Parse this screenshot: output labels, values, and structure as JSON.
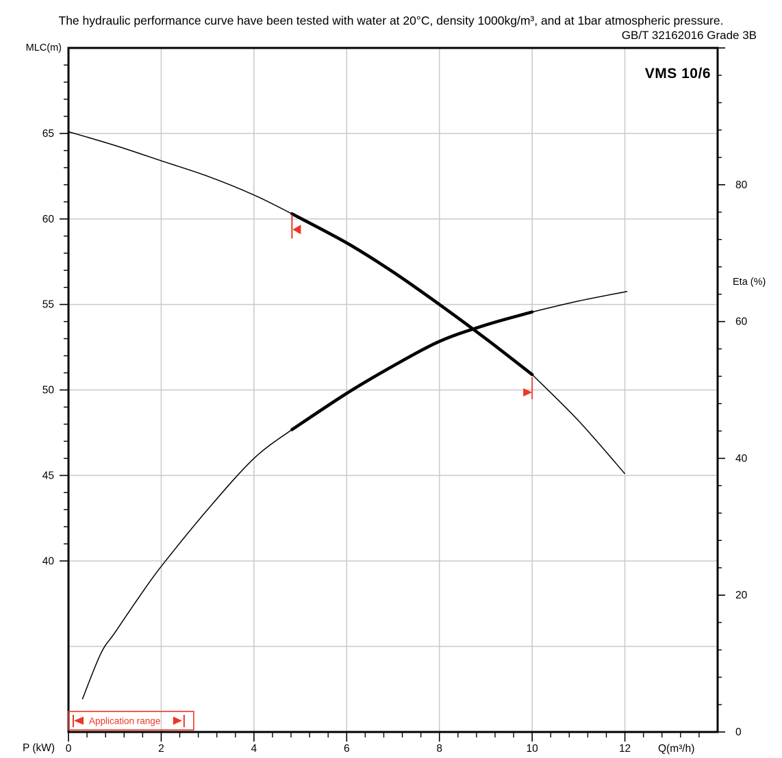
{
  "header": {
    "title_line1": "The hydraulic performance curve have been tested with water at 20°C, density 1000kg/m³, and at 1bar atmospheric pressure.",
    "title_line2": "GB/T 32162016 Grade 3B"
  },
  "chart_data": {
    "type": "line",
    "model_label": "VMS 10/6",
    "axes": {
      "x": {
        "label": "Q(m³/h)",
        "secondary_label": "P (kW)",
        "min": 0,
        "max": 14,
        "major_ticks": [
          0,
          2,
          4,
          6,
          8,
          10,
          12
        ],
        "minor_step": 0.4,
        "grid_at": [
          2,
          4,
          6,
          8,
          10,
          12
        ]
      },
      "y_left": {
        "label": "MLC(m)",
        "min": 30,
        "max": 70,
        "major_ticks": [
          65,
          60,
          55,
          50,
          45,
          40
        ],
        "minor_step": 1,
        "minor_range": [
          40,
          69
        ],
        "grid_at": [
          65,
          60,
          55,
          50,
          45,
          40,
          35
        ]
      },
      "y_right": {
        "label": "Eta (%)",
        "min": 0,
        "max": 100,
        "major_ticks": [
          100,
          80,
          60,
          40,
          20,
          0
        ],
        "labeled_ticks": [
          80,
          60,
          40,
          20,
          0
        ],
        "minor_step": 4
      }
    },
    "series": [
      {
        "name": "head-curve",
        "axis": "left",
        "points": [
          [
            0,
            65.1
          ],
          [
            1,
            64.3
          ],
          [
            2,
            63.4
          ],
          [
            3,
            62.5
          ],
          [
            4,
            61.4
          ],
          [
            4.82,
            60.3
          ],
          [
            6,
            58.6
          ],
          [
            7,
            56.9
          ],
          [
            8,
            55.0
          ],
          [
            9,
            53.0
          ],
          [
            10,
            50.9
          ],
          [
            11,
            48.2
          ],
          [
            12,
            45.1
          ]
        ],
        "bold_range": [
          4.82,
          10
        ]
      },
      {
        "name": "eta-curve",
        "axis": "right",
        "points": [
          [
            0.3,
            4.8
          ],
          [
            0.7,
            11.5
          ],
          [
            1,
            14.5
          ],
          [
            1.5,
            19.5
          ],
          [
            2,
            24.2
          ],
          [
            3,
            32.5
          ],
          [
            4,
            40
          ],
          [
            4.82,
            44.2
          ],
          [
            6,
            49.5
          ],
          [
            7,
            53.5
          ],
          [
            8,
            57.1
          ],
          [
            9,
            59.5
          ],
          [
            10,
            61.4
          ],
          [
            11,
            63
          ],
          [
            12.05,
            64.4
          ]
        ],
        "bold_range": [
          4.82,
          10
        ]
      }
    ],
    "duty_markers": [
      {
        "q": 4.82,
        "direction": "left"
      },
      {
        "q": 10.0,
        "direction": "right"
      }
    ],
    "application_range": {
      "label": "Application range",
      "q_from": 0,
      "q_to": 2.7
    }
  },
  "colors": {
    "accent_red": "#ee3524",
    "grid": "#c9c9c9",
    "curve": "#000000"
  }
}
